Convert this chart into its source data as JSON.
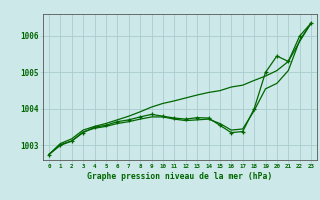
{
  "title": "Graphe pression niveau de la mer (hPa)",
  "bg_color": "#cce8e8",
  "plot_bg_color": "#cce8e8",
  "grid_color": "#aacccc",
  "line_color": "#006600",
  "marker_color": "#006600",
  "axis_label_color": "#006600",
  "xlim": [
    -0.5,
    23.5
  ],
  "ylim": [
    1002.6,
    1006.6
  ],
  "yticks": [
    1003,
    1004,
    1005,
    1006
  ],
  "xtick_labels": [
    "0",
    "1",
    "2",
    "3",
    "4",
    "5",
    "6",
    "7",
    "8",
    "9",
    "10",
    "11",
    "12",
    "13",
    "14",
    "15",
    "16",
    "17",
    "18",
    "19",
    "20",
    "21",
    "22",
    "23"
  ],
  "series_main": [
    1002.75,
    1003.0,
    1003.12,
    1003.35,
    1003.5,
    1003.55,
    1003.65,
    1003.7,
    1003.78,
    1003.85,
    1003.8,
    1003.75,
    1003.72,
    1003.76,
    1003.75,
    1003.55,
    1003.35,
    1003.38,
    1004.0,
    1005.0,
    1005.45,
    1005.3,
    1006.0,
    1006.35
  ],
  "series_upper": [
    1002.75,
    1003.05,
    1003.18,
    1003.42,
    1003.52,
    1003.6,
    1003.7,
    1003.8,
    1003.92,
    1004.05,
    1004.15,
    1004.22,
    1004.3,
    1004.38,
    1004.45,
    1004.5,
    1004.6,
    1004.65,
    1004.78,
    1004.9,
    1005.05,
    1005.3,
    1005.85,
    1006.35
  ],
  "series_mid": [
    1002.75,
    1003.02,
    1003.12,
    1003.37,
    1003.47,
    1003.52,
    1003.6,
    1003.65,
    1003.72,
    1003.78,
    1003.78,
    1003.72,
    1003.68,
    1003.7,
    1003.72,
    1003.6,
    1003.42,
    1003.45,
    1003.95,
    1004.55,
    1004.7,
    1005.05,
    1005.88,
    1006.35
  ]
}
